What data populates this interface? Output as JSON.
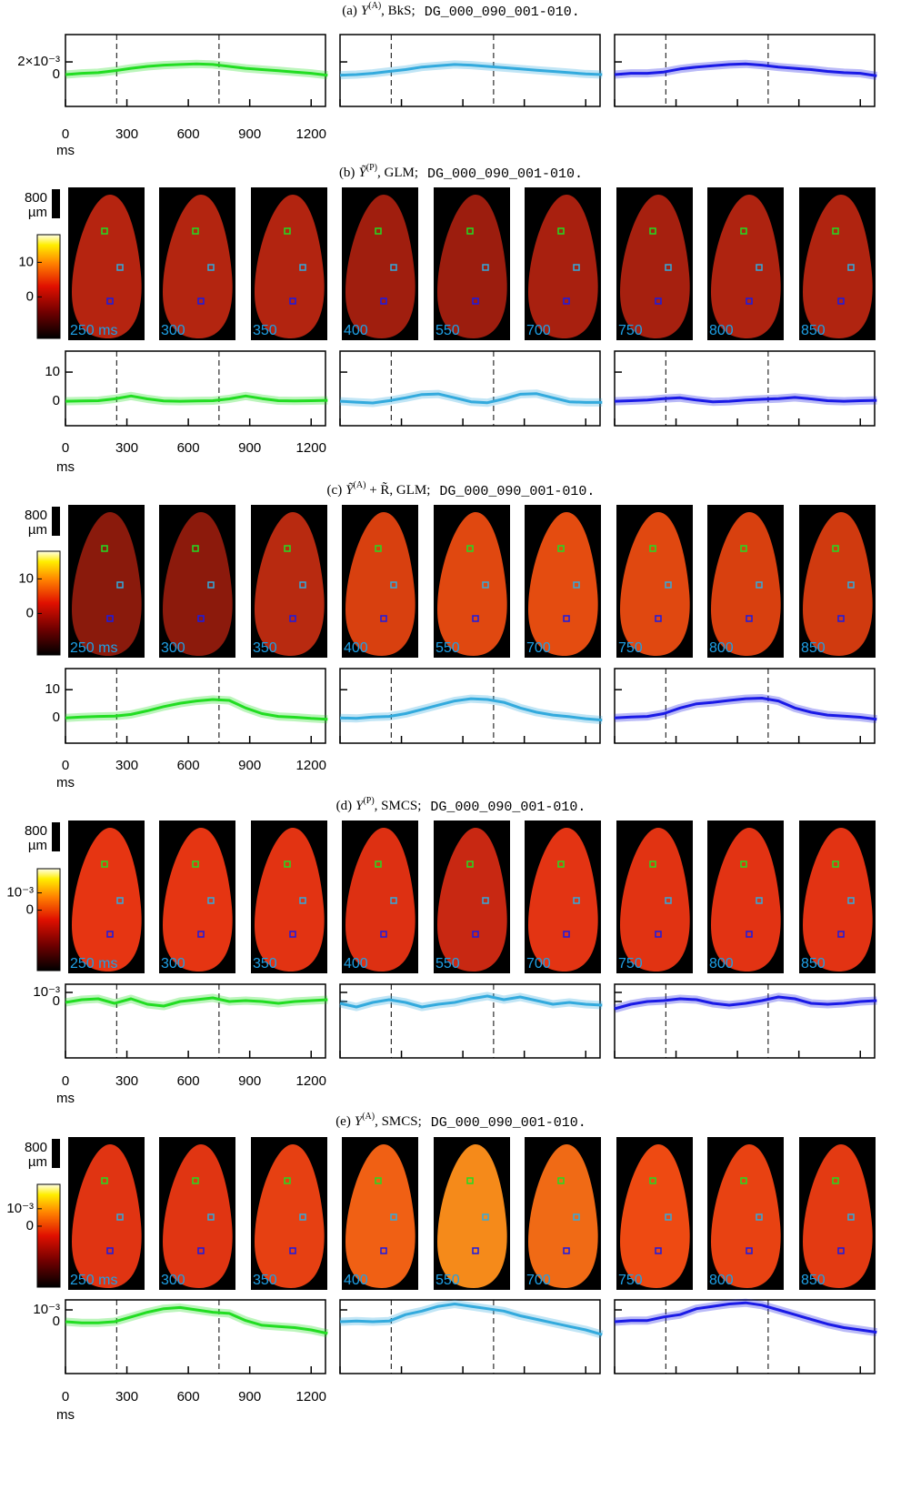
{
  "chart_data": [
    {
      "type": "line",
      "title": {
        "prefix": "(a)",
        "symbol": "Y",
        "superscript": "(A)",
        "method": ", BkS;",
        "dataset": "DG_000_090_001-010."
      },
      "x": [
        0,
        80,
        160,
        240,
        320,
        400,
        480,
        560,
        640,
        720,
        800,
        880,
        960,
        1040,
        1120,
        1200,
        1280
      ],
      "xlim": [
        0,
        1270
      ],
      "xticks": [
        0,
        300,
        600,
        900,
        1200
      ],
      "xlabel": "ms",
      "ylim": [
        -0.005,
        0.0063
      ],
      "yticks": [
        {
          "value": 0.002,
          "label": "2×10⁻³"
        },
        0
      ],
      "markers": [
        250,
        750
      ],
      "series": [
        {
          "color": "#22dd22",
          "values": [
            0,
            0.0002,
            0.0003,
            0.0006,
            0.001,
            0.0013,
            0.0015,
            0.0016,
            0.0017,
            0.0016,
            0.0013,
            0.001,
            0.0008,
            0.0006,
            0.0004,
            0.0002,
            -0.0001
          ]
        },
        {
          "color": "#33aadd",
          "values": [
            -0.0001,
            0,
            0.0002,
            0.0005,
            0.0008,
            0.0012,
            0.0014,
            0.0016,
            0.0015,
            0.0013,
            0.0011,
            0.0009,
            0.0007,
            0.0005,
            0.0003,
            0.0001,
            0
          ]
        },
        {
          "color": "#1a1ae6",
          "values": [
            0,
            0.0002,
            0.0002,
            0.0004,
            0.0009,
            0.0012,
            0.0014,
            0.0016,
            0.0017,
            0.0015,
            0.0012,
            0.001,
            0.0008,
            0.0005,
            0.0003,
            0.0002,
            -0.0002
          ]
        }
      ]
    },
    {
      "type": "line",
      "title": {
        "prefix": "(b)",
        "symbol": "Ỹ",
        "superscript": "(P)",
        "method": ", GLM;",
        "dataset": "DG_000_090_001-010."
      },
      "maps": {
        "labels": [
          "250 ms",
          "300",
          "350",
          "400",
          "550",
          "700",
          "750",
          "800",
          "850"
        ],
        "colors": [
          "#b52410",
          "#b32510",
          "#b22410",
          "#a01e0e",
          "#9c1d0e",
          "#a8200f",
          "#a6200f",
          "#ae2310",
          "#b02410"
        ],
        "scale_bar": {
          "value": 800,
          "unit": "µm"
        },
        "clim": [
          -12,
          18
        ],
        "cticks": [
          10,
          0
        ]
      },
      "x": [
        0,
        80,
        160,
        240,
        320,
        400,
        480,
        560,
        640,
        720,
        800,
        880,
        960,
        1040,
        1120,
        1200,
        1280
      ],
      "xlim": [
        0,
        1270
      ],
      "xticks": [
        0,
        300,
        600,
        900,
        1200
      ],
      "xlabel": "ms",
      "ylim": [
        -8.4,
        17.2
      ],
      "yticks": [
        10,
        0
      ],
      "markers": [
        250,
        750
      ],
      "series": [
        {
          "color": "#22dd22",
          "values": [
            0,
            0.1,
            0.2,
            0.8,
            1.8,
            0.8,
            0.1,
            0,
            0.1,
            0.2,
            0.8,
            1.8,
            0.9,
            0.2,
            0.1,
            0.2,
            0.3
          ]
        },
        {
          "color": "#33aadd",
          "values": [
            0,
            -0.3,
            -0.6,
            0.2,
            1.2,
            2.3,
            2.5,
            1.2,
            -0.2,
            -0.5,
            0.8,
            2.4,
            2.6,
            1.2,
            -0.2,
            -0.4,
            -0.4
          ]
        },
        {
          "color": "#1a1ae6",
          "values": [
            0,
            0.2,
            0.4,
            0.9,
            1.2,
            0.4,
            -0.2,
            0,
            0.4,
            0.7,
            0.9,
            1.3,
            0.8,
            0.2,
            0,
            0.2,
            0.3
          ]
        }
      ]
    },
    {
      "type": "line",
      "title": {
        "prefix": "(c)",
        "symbol": "Ỹ",
        "superscript": "(A)",
        "method": " + R̃, GLM;",
        "dataset": "DG_000_090_001-010."
      },
      "maps": {
        "labels": [
          "250 ms",
          "300",
          "350",
          "400",
          "550",
          "700",
          "750",
          "800",
          "850"
        ],
        "colors": [
          "#8a1a0c",
          "#8c1a0c",
          "#b82a10",
          "#d8400f",
          "#e04810",
          "#e44c10",
          "#e04810",
          "#d8400f",
          "#d03a0f"
        ],
        "scale_bar": {
          "value": 800,
          "unit": "µm"
        },
        "clim": [
          -12,
          18
        ],
        "cticks": [
          10,
          0
        ]
      },
      "x": [
        0,
        80,
        160,
        240,
        320,
        400,
        480,
        560,
        640,
        720,
        800,
        880,
        960,
        1040,
        1120,
        1200,
        1280
      ],
      "xlim": [
        0,
        1270
      ],
      "xticks": [
        0,
        300,
        600,
        900,
        1200
      ],
      "xlabel": "ms",
      "ylim": [
        -9,
        17.5
      ],
      "yticks": [
        10,
        0
      ],
      "markers": [
        250,
        750
      ],
      "series": [
        {
          "color": "#22dd22",
          "values": [
            0,
            0.3,
            0.5,
            0.6,
            1.2,
            2.5,
            4,
            5.2,
            6,
            6.5,
            6.2,
            3.5,
            1.5,
            0.5,
            0.2,
            -0.2,
            -0.5
          ]
        },
        {
          "color": "#33aadd",
          "values": [
            0,
            -0.2,
            0.3,
            0.5,
            1.5,
            3,
            4.5,
            6,
            6.8,
            6.5,
            5.5,
            3.5,
            2,
            1,
            0.4,
            -0.3,
            -0.8
          ]
        },
        {
          "color": "#1a1ae6",
          "values": [
            0,
            0.3,
            0.5,
            1.5,
            3.5,
            5,
            5.5,
            6.2,
            6.8,
            7,
            6,
            3.5,
            2,
            1,
            0.6,
            0.2,
            -0.5
          ]
        }
      ]
    },
    {
      "type": "line",
      "title": {
        "prefix": "(d)",
        "symbol": "Y",
        "superscript": "(P)",
        "method": ", SMCS;",
        "dataset": "DG_000_090_001-010."
      },
      "maps": {
        "labels": [
          "250 ms",
          "300",
          "350",
          "400",
          "550",
          "700",
          "750",
          "800",
          "850"
        ],
        "colors": [
          "#e63512",
          "#e53512",
          "#e23312",
          "#dd3012",
          "#c82812",
          "#e33413",
          "#e13312",
          "#e23313",
          "#e23313"
        ],
        "scale_bar": {
          "value": 800,
          "unit": "µm"
        },
        "clim": [
          -0.0035,
          0.0024
        ],
        "cticks": [
          {
            "value": 0.001,
            "label": "10⁻³"
          },
          0
        ]
      },
      "x": [
        0,
        80,
        160,
        240,
        320,
        400,
        480,
        560,
        640,
        720,
        800,
        880,
        960,
        1040,
        1120,
        1200,
        1280
      ],
      "xlim": [
        0,
        1270
      ],
      "xticks": [
        0,
        300,
        600,
        900,
        1200
      ],
      "xlabel": "ms",
      "ylim": [
        -0.0062,
        0.0019
      ],
      "yticks": [
        {
          "value": 0.001,
          "label": "10⁻³"
        },
        0
      ],
      "markers": [
        250,
        750
      ],
      "series": [
        {
          "color": "#22dd22",
          "values": [
            -0.0001,
            0.0002,
            0.0003,
            -0.0002,
            0.0003,
            -0.0003,
            -0.0005,
            0,
            0.0002,
            0.0004,
            0,
            0.0001,
            0,
            -0.0002,
            0,
            0.0001,
            0.0002
          ]
        },
        {
          "color": "#33aadd",
          "values": [
            -0.0002,
            -0.0006,
            -0.0001,
            0.0002,
            -0.0001,
            -0.0006,
            -0.0003,
            -0.0001,
            0.0003,
            0.0006,
            0.0002,
            0.0005,
            0.0001,
            -0.0003,
            -0.0001,
            -0.0003,
            -0.0004
          ]
        },
        {
          "color": "#1a1ae6",
          "values": [
            -0.0008,
            -0.0003,
            0,
            0.0001,
            0.0003,
            0.0002,
            -0.0002,
            -0.0004,
            -0.0002,
            0.0001,
            0.0005,
            0.0003,
            -0.0002,
            -0.0003,
            -0.0002,
            0,
            0.0001
          ]
        }
      ]
    },
    {
      "type": "line",
      "title": {
        "prefix": "(e)",
        "symbol": "Y",
        "superscript": "(A)",
        "method": ", SMCS;",
        "dataset": "DG_000_090_001-010."
      },
      "maps": {
        "labels": [
          "250 ms",
          "300",
          "350",
          "400",
          "550",
          "700",
          "750",
          "800",
          "850"
        ],
        "colors": [
          "#e03412",
          "#e03512",
          "#e64012",
          "#f06014",
          "#f58a1a",
          "#f06a15",
          "#ee4a12",
          "#e84212",
          "#e33a12"
        ],
        "scale_bar": {
          "value": 800,
          "unit": "µm"
        },
        "clim": [
          -0.0035,
          0.0024
        ],
        "cticks": [
          {
            "value": 0.001,
            "label": "10⁻³"
          },
          0
        ]
      },
      "x": [
        0,
        80,
        160,
        240,
        320,
        400,
        480,
        560,
        640,
        720,
        800,
        880,
        960,
        1040,
        1120,
        1200,
        1280
      ],
      "xlim": [
        0,
        1270
      ],
      "xticks": [
        0,
        300,
        600,
        900,
        1200
      ],
      "xlabel": "ms",
      "ylim": [
        -0.0044,
        0.00185
      ],
      "yticks": [
        {
          "value": 0.001,
          "label": "10⁻³"
        },
        0
      ],
      "markers": [
        250,
        750
      ],
      "series": [
        {
          "color": "#22dd22",
          "values": [
            0,
            -0.0001,
            -0.0001,
            0,
            0.0004,
            0.0008,
            0.0011,
            0.0012,
            0.001,
            0.0008,
            0.0007,
            0.0001,
            -0.0003,
            -0.0004,
            -0.0005,
            -0.0007,
            -0.001
          ]
        },
        {
          "color": "#33aadd",
          "values": [
            0,
            5e-05,
            0,
            5e-05,
            0.0006,
            0.0009,
            0.0013,
            0.0015,
            0.0013,
            0.0011,
            0.0009,
            0.0005,
            0.0002,
            -0.0001,
            -0.0004,
            -0.0007,
            -0.0011
          ]
        },
        {
          "color": "#1a1ae6",
          "values": [
            0,
            0.0001,
            0.0001,
            0.0004,
            0.0006,
            0.0011,
            0.0013,
            0.0015,
            0.0016,
            0.0014,
            0.001,
            0.0006,
            0.0002,
            -0.0002,
            -0.0005,
            -0.0007,
            -0.0009
          ]
        }
      ]
    }
  ]
}
